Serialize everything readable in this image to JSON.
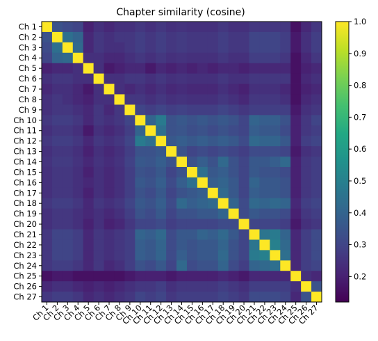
{
  "chart_data": {
    "type": "heatmap",
    "title": "Chapter similarity (cosine)",
    "xlabel": "",
    "ylabel": "",
    "x_labels": [
      "Ch 1",
      "Ch 2",
      "Ch 3",
      "Ch 4",
      "Ch 5",
      "Ch 6",
      "Ch 7",
      "Ch 8",
      "Ch 9",
      "Ch 10",
      "Ch 11",
      "Ch 12",
      "Ch 13",
      "Ch 14",
      "Ch 15",
      "Ch 16",
      "Ch 17",
      "Ch 18",
      "Ch 19",
      "Ch 20",
      "Ch 21",
      "Ch 22",
      "Ch 23",
      "Ch 24",
      "Ch 25",
      "Ch 26",
      "Ch 27"
    ],
    "y_labels": [
      "Ch 1",
      "Ch 2",
      "Ch 3",
      "Ch 4",
      "Ch 5",
      "Ch 6",
      "Ch 7",
      "Ch 8",
      "Ch 9",
      "Ch 10",
      "Ch 11",
      "Ch 12",
      "Ch 13",
      "Ch 14",
      "Ch 15",
      "Ch 16",
      "Ch 17",
      "Ch 18",
      "Ch 19",
      "Ch 20",
      "Ch 21",
      "Ch 22",
      "Ch 23",
      "Ch 24",
      "Ch 25",
      "Ch 26",
      "Ch 27"
    ],
    "colormap": "viridis",
    "vmin": 0.12,
    "vmax": 1.0,
    "colorbar_ticks": [
      "0.2",
      "0.3",
      "0.4",
      "0.5",
      "0.6",
      "0.7",
      "0.8",
      "0.9",
      "1.0"
    ],
    "colorbar_tick_values": [
      0.2,
      0.3,
      0.4,
      0.5,
      0.6,
      0.7,
      0.8,
      0.9,
      1.0
    ],
    "values": [
      [
        1.0,
        0.34,
        0.32,
        0.3,
        0.2,
        0.24,
        0.22,
        0.24,
        0.24,
        0.26,
        0.24,
        0.26,
        0.24,
        0.25,
        0.24,
        0.24,
        0.24,
        0.26,
        0.24,
        0.24,
        0.26,
        0.26,
        0.26,
        0.26,
        0.16,
        0.22,
        0.26
      ],
      [
        0.34,
        1.0,
        0.44,
        0.4,
        0.22,
        0.26,
        0.24,
        0.26,
        0.26,
        0.28,
        0.26,
        0.28,
        0.26,
        0.27,
        0.26,
        0.26,
        0.26,
        0.28,
        0.26,
        0.26,
        0.3,
        0.3,
        0.3,
        0.28,
        0.18,
        0.24,
        0.28
      ],
      [
        0.32,
        0.44,
        1.0,
        0.42,
        0.22,
        0.26,
        0.24,
        0.24,
        0.26,
        0.28,
        0.26,
        0.28,
        0.26,
        0.27,
        0.26,
        0.26,
        0.26,
        0.28,
        0.26,
        0.26,
        0.3,
        0.3,
        0.3,
        0.28,
        0.18,
        0.24,
        0.28
      ],
      [
        0.3,
        0.4,
        0.42,
        1.0,
        0.24,
        0.24,
        0.22,
        0.22,
        0.24,
        0.26,
        0.24,
        0.26,
        0.24,
        0.25,
        0.24,
        0.24,
        0.24,
        0.26,
        0.24,
        0.24,
        0.28,
        0.28,
        0.28,
        0.26,
        0.16,
        0.22,
        0.26
      ],
      [
        0.2,
        0.22,
        0.22,
        0.24,
        1.0,
        0.24,
        0.18,
        0.2,
        0.22,
        0.22,
        0.18,
        0.22,
        0.2,
        0.22,
        0.2,
        0.22,
        0.2,
        0.22,
        0.22,
        0.2,
        0.22,
        0.22,
        0.22,
        0.22,
        0.16,
        0.2,
        0.22
      ],
      [
        0.24,
        0.26,
        0.26,
        0.24,
        0.24,
        1.0,
        0.24,
        0.24,
        0.26,
        0.26,
        0.24,
        0.26,
        0.24,
        0.25,
        0.24,
        0.24,
        0.24,
        0.26,
        0.24,
        0.24,
        0.26,
        0.26,
        0.26,
        0.26,
        0.16,
        0.22,
        0.24
      ],
      [
        0.22,
        0.24,
        0.24,
        0.22,
        0.18,
        0.24,
        1.0,
        0.24,
        0.22,
        0.24,
        0.22,
        0.24,
        0.22,
        0.23,
        0.22,
        0.22,
        0.22,
        0.24,
        0.22,
        0.2,
        0.24,
        0.24,
        0.24,
        0.22,
        0.16,
        0.2,
        0.22
      ],
      [
        0.24,
        0.26,
        0.24,
        0.22,
        0.2,
        0.24,
        0.24,
        1.0,
        0.26,
        0.26,
        0.24,
        0.26,
        0.24,
        0.25,
        0.24,
        0.24,
        0.24,
        0.26,
        0.24,
        0.22,
        0.26,
        0.26,
        0.26,
        0.24,
        0.16,
        0.22,
        0.24
      ],
      [
        0.24,
        0.26,
        0.26,
        0.24,
        0.22,
        0.26,
        0.22,
        0.26,
        1.0,
        0.3,
        0.28,
        0.3,
        0.28,
        0.29,
        0.28,
        0.28,
        0.28,
        0.3,
        0.28,
        0.26,
        0.28,
        0.28,
        0.28,
        0.28,
        0.18,
        0.24,
        0.26
      ],
      [
        0.26,
        0.28,
        0.28,
        0.26,
        0.22,
        0.26,
        0.24,
        0.26,
        0.3,
        1.0,
        0.4,
        0.48,
        0.34,
        0.36,
        0.34,
        0.36,
        0.34,
        0.36,
        0.34,
        0.3,
        0.4,
        0.38,
        0.38,
        0.34,
        0.2,
        0.26,
        0.3
      ],
      [
        0.24,
        0.26,
        0.26,
        0.24,
        0.18,
        0.24,
        0.22,
        0.24,
        0.28,
        0.4,
        1.0,
        0.44,
        0.34,
        0.35,
        0.33,
        0.34,
        0.32,
        0.34,
        0.32,
        0.3,
        0.38,
        0.36,
        0.36,
        0.32,
        0.2,
        0.26,
        0.28
      ],
      [
        0.26,
        0.28,
        0.28,
        0.26,
        0.22,
        0.26,
        0.24,
        0.26,
        0.3,
        0.48,
        0.44,
        1.0,
        0.36,
        0.38,
        0.36,
        0.38,
        0.36,
        0.38,
        0.36,
        0.32,
        0.42,
        0.4,
        0.4,
        0.36,
        0.2,
        0.28,
        0.3
      ],
      [
        0.24,
        0.26,
        0.26,
        0.24,
        0.2,
        0.24,
        0.22,
        0.24,
        0.28,
        0.34,
        0.34,
        0.36,
        1.0,
        0.34,
        0.3,
        0.32,
        0.3,
        0.32,
        0.3,
        0.28,
        0.32,
        0.32,
        0.32,
        0.3,
        0.18,
        0.24,
        0.26
      ],
      [
        0.25,
        0.27,
        0.27,
        0.25,
        0.22,
        0.25,
        0.23,
        0.25,
        0.29,
        0.36,
        0.35,
        0.38,
        0.34,
        1.0,
        0.34,
        0.38,
        0.34,
        0.42,
        0.34,
        0.3,
        0.36,
        0.36,
        0.38,
        0.42,
        0.2,
        0.26,
        0.28
      ],
      [
        0.24,
        0.26,
        0.26,
        0.24,
        0.2,
        0.24,
        0.22,
        0.24,
        0.28,
        0.34,
        0.33,
        0.36,
        0.3,
        0.34,
        1.0,
        0.44,
        0.36,
        0.38,
        0.34,
        0.3,
        0.36,
        0.34,
        0.34,
        0.32,
        0.2,
        0.26,
        0.28
      ],
      [
        0.24,
        0.26,
        0.26,
        0.24,
        0.22,
        0.24,
        0.22,
        0.24,
        0.28,
        0.36,
        0.34,
        0.38,
        0.32,
        0.38,
        0.44,
        1.0,
        0.38,
        0.4,
        0.36,
        0.3,
        0.4,
        0.36,
        0.36,
        0.34,
        0.2,
        0.26,
        0.28
      ],
      [
        0.24,
        0.26,
        0.26,
        0.24,
        0.2,
        0.24,
        0.22,
        0.24,
        0.28,
        0.34,
        0.32,
        0.36,
        0.3,
        0.34,
        0.36,
        0.38,
        1.0,
        0.42,
        0.36,
        0.3,
        0.38,
        0.36,
        0.36,
        0.34,
        0.2,
        0.26,
        0.28
      ],
      [
        0.26,
        0.28,
        0.28,
        0.26,
        0.22,
        0.26,
        0.24,
        0.26,
        0.3,
        0.36,
        0.34,
        0.38,
        0.32,
        0.42,
        0.38,
        0.4,
        0.42,
        1.0,
        0.4,
        0.32,
        0.42,
        0.4,
        0.42,
        0.4,
        0.22,
        0.28,
        0.3
      ],
      [
        0.24,
        0.26,
        0.26,
        0.24,
        0.22,
        0.24,
        0.22,
        0.24,
        0.28,
        0.34,
        0.32,
        0.36,
        0.3,
        0.34,
        0.34,
        0.36,
        0.36,
        0.4,
        1.0,
        0.32,
        0.36,
        0.34,
        0.34,
        0.32,
        0.2,
        0.26,
        0.28
      ],
      [
        0.24,
        0.26,
        0.26,
        0.24,
        0.2,
        0.24,
        0.2,
        0.22,
        0.26,
        0.3,
        0.3,
        0.32,
        0.28,
        0.3,
        0.3,
        0.3,
        0.3,
        0.32,
        0.32,
        1.0,
        0.3,
        0.3,
        0.3,
        0.28,
        0.18,
        0.24,
        0.26
      ],
      [
        0.26,
        0.3,
        0.3,
        0.28,
        0.22,
        0.26,
        0.24,
        0.26,
        0.28,
        0.4,
        0.38,
        0.42,
        0.32,
        0.36,
        0.36,
        0.4,
        0.38,
        0.42,
        0.36,
        0.3,
        1.0,
        0.46,
        0.48,
        0.4,
        0.22,
        0.28,
        0.32
      ],
      [
        0.26,
        0.3,
        0.3,
        0.28,
        0.22,
        0.26,
        0.24,
        0.26,
        0.28,
        0.38,
        0.36,
        0.4,
        0.32,
        0.36,
        0.34,
        0.36,
        0.36,
        0.4,
        0.34,
        0.3,
        0.46,
        1.0,
        0.5,
        0.42,
        0.22,
        0.28,
        0.32
      ],
      [
        0.26,
        0.3,
        0.3,
        0.28,
        0.22,
        0.26,
        0.24,
        0.26,
        0.28,
        0.38,
        0.36,
        0.4,
        0.32,
        0.38,
        0.34,
        0.36,
        0.36,
        0.42,
        0.34,
        0.3,
        0.48,
        0.5,
        1.0,
        0.44,
        0.22,
        0.28,
        0.32
      ],
      [
        0.26,
        0.28,
        0.28,
        0.26,
        0.22,
        0.26,
        0.22,
        0.24,
        0.28,
        0.34,
        0.32,
        0.36,
        0.3,
        0.42,
        0.32,
        0.34,
        0.34,
        0.4,
        0.32,
        0.28,
        0.4,
        0.42,
        0.44,
        1.0,
        0.22,
        0.28,
        0.3
      ],
      [
        0.16,
        0.18,
        0.18,
        0.16,
        0.16,
        0.16,
        0.16,
        0.16,
        0.18,
        0.2,
        0.2,
        0.2,
        0.18,
        0.2,
        0.2,
        0.2,
        0.2,
        0.22,
        0.2,
        0.18,
        0.22,
        0.22,
        0.22,
        0.22,
        1.0,
        0.24,
        0.22
      ],
      [
        0.22,
        0.24,
        0.24,
        0.22,
        0.2,
        0.22,
        0.2,
        0.22,
        0.24,
        0.26,
        0.26,
        0.28,
        0.24,
        0.26,
        0.26,
        0.26,
        0.26,
        0.28,
        0.26,
        0.24,
        0.28,
        0.28,
        0.28,
        0.28,
        0.24,
        1.0,
        0.34
      ],
      [
        0.26,
        0.28,
        0.28,
        0.26,
        0.22,
        0.24,
        0.22,
        0.24,
        0.26,
        0.3,
        0.28,
        0.3,
        0.26,
        0.28,
        0.28,
        0.28,
        0.28,
        0.3,
        0.28,
        0.26,
        0.32,
        0.32,
        0.32,
        0.3,
        0.22,
        0.34,
        1.0
      ]
    ]
  }
}
